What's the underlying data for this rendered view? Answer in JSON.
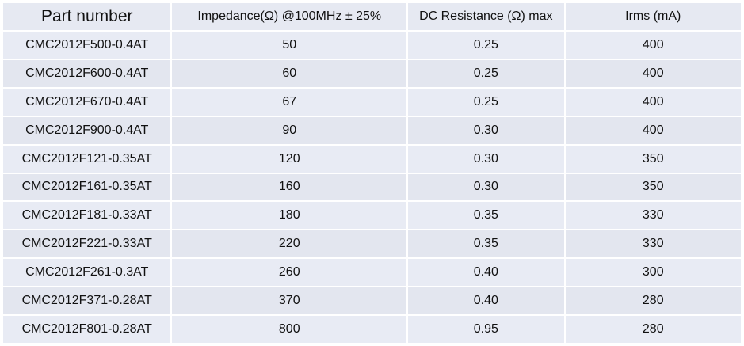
{
  "table": {
    "headers": [
      "Part number",
      "Impedance(Ω) @100MHz ± 25%",
      "DC Resistance (Ω) max",
      "Irms (mA)"
    ],
    "rows": [
      [
        "CMC2012F500-0.4AT",
        "50",
        "0.25",
        "400"
      ],
      [
        "CMC2012F600-0.4AT",
        "60",
        "0.25",
        "400"
      ],
      [
        "CMC2012F670-0.4AT",
        "67",
        "0.25",
        "400"
      ],
      [
        "CMC2012F900-0.4AT",
        "90",
        "0.30",
        "400"
      ],
      [
        "CMC2012F121-0.35AT",
        "120",
        "0.30",
        "350"
      ],
      [
        "CMC2012F161-0.35AT",
        "160",
        "0.30",
        "350"
      ],
      [
        "CMC2012F181-0.33AT",
        "180",
        "0.35",
        "330"
      ],
      [
        "CMC2012F221-0.33AT",
        "220",
        "0.35",
        "330"
      ],
      [
        "CMC2012F261-0.3AT",
        "260",
        "0.40",
        "300"
      ],
      [
        "CMC2012F371-0.28AT",
        "370",
        "0.40",
        "280"
      ],
      [
        "CMC2012F801-0.28AT",
        "800",
        "0.95",
        "280"
      ]
    ]
  }
}
